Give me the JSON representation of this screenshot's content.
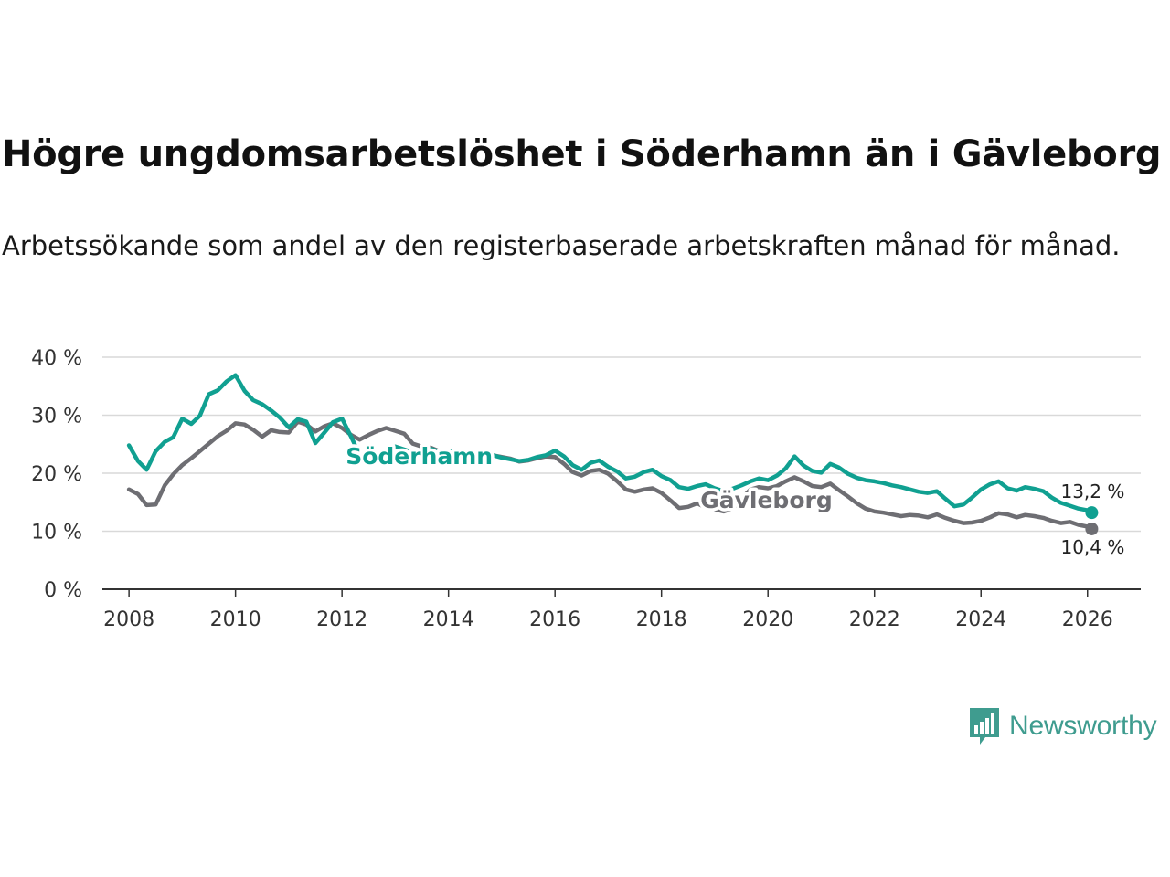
{
  "title": "Högre ungdomsarbetslöshet i Söderhamn än i Gävleborg",
  "subtitle": "Arbetssökande som andel av den registerbaserade arbetskraften månad för månad.",
  "brand": {
    "name": "Newsworthy",
    "logo_icon": "bar-chart-bubble-icon",
    "color": "#3f9c8f"
  },
  "chart_data": {
    "type": "line",
    "title": "Högre ungdomsarbetslöshet i Söderhamn än i Gävleborg",
    "xlabel": "",
    "ylabel": "",
    "xlim": [
      2007.5,
      2027
    ],
    "ylim": [
      0,
      40
    ],
    "grid": true,
    "legend": "inline labels",
    "x_ticks": [
      2008,
      2010,
      2012,
      2014,
      2016,
      2018,
      2020,
      2022,
      2024,
      2026
    ],
    "x_tick_labels": [
      "2008",
      "2010",
      "2012",
      "2014",
      "2016",
      "2018",
      "2020",
      "2022",
      "2024",
      "2026"
    ],
    "y_ticks": [
      0,
      10,
      20,
      30,
      40
    ],
    "y_tick_labels": [
      "0 %",
      "10 %",
      "20 %",
      "30 %",
      "40 %"
    ],
    "series": [
      {
        "name": "Gävleborg",
        "label": "Gävleborg",
        "color": "#6e6e73",
        "end_label": "10,4 %",
        "points": [
          [
            2008.0,
            17.2
          ],
          [
            2008.17,
            16.4
          ],
          [
            2008.33,
            14.5
          ],
          [
            2008.5,
            14.6
          ],
          [
            2008.67,
            17.9
          ],
          [
            2008.83,
            19.8
          ],
          [
            2009.0,
            21.4
          ],
          [
            2009.17,
            22.6
          ],
          [
            2009.33,
            23.8
          ],
          [
            2009.5,
            25.1
          ],
          [
            2009.67,
            26.4
          ],
          [
            2009.83,
            27.3
          ],
          [
            2010.0,
            28.6
          ],
          [
            2010.17,
            28.4
          ],
          [
            2010.33,
            27.5
          ],
          [
            2010.5,
            26.3
          ],
          [
            2010.67,
            27.4
          ],
          [
            2010.83,
            27.1
          ],
          [
            2011.0,
            27.0
          ],
          [
            2011.17,
            28.9
          ],
          [
            2011.33,
            28.4
          ],
          [
            2011.5,
            27.2
          ],
          [
            2011.67,
            28.1
          ],
          [
            2011.83,
            28.6
          ],
          [
            2012.0,
            27.8
          ],
          [
            2012.17,
            26.6
          ],
          [
            2012.33,
            25.8
          ],
          [
            2012.5,
            26.6
          ],
          [
            2012.67,
            27.3
          ],
          [
            2012.83,
            27.8
          ],
          [
            2013.0,
            27.3
          ],
          [
            2013.17,
            26.8
          ],
          [
            2013.33,
            25.1
          ],
          [
            2013.5,
            24.6
          ],
          [
            2013.67,
            24.4
          ],
          [
            2013.83,
            23.8
          ],
          [
            2014.0,
            23.5
          ],
          [
            2014.17,
            23.6
          ],
          [
            2014.33,
            23.3
          ],
          [
            2014.5,
            23.2
          ],
          [
            2014.67,
            22.9
          ],
          [
            2014.83,
            23.1
          ],
          [
            2015.0,
            22.8
          ],
          [
            2015.17,
            22.5
          ],
          [
            2015.33,
            22.0
          ],
          [
            2015.5,
            22.2
          ],
          [
            2015.67,
            22.6
          ],
          [
            2015.83,
            22.9
          ],
          [
            2016.0,
            22.8
          ],
          [
            2016.17,
            21.6
          ],
          [
            2016.33,
            20.2
          ],
          [
            2016.5,
            19.6
          ],
          [
            2016.67,
            20.4
          ],
          [
            2016.83,
            20.6
          ],
          [
            2017.0,
            19.9
          ],
          [
            2017.17,
            18.6
          ],
          [
            2017.33,
            17.2
          ],
          [
            2017.5,
            16.8
          ],
          [
            2017.67,
            17.2
          ],
          [
            2017.83,
            17.4
          ],
          [
            2018.0,
            16.6
          ],
          [
            2018.17,
            15.3
          ],
          [
            2018.33,
            14.0
          ],
          [
            2018.5,
            14.2
          ],
          [
            2018.67,
            14.8
          ],
          [
            2018.83,
            14.1
          ],
          [
            2019.0,
            13.8
          ],
          [
            2019.17,
            13.4
          ],
          [
            2019.33,
            13.9
          ],
          [
            2019.5,
            15.6
          ],
          [
            2019.67,
            17.2
          ],
          [
            2019.83,
            17.6
          ],
          [
            2020.0,
            17.4
          ],
          [
            2020.17,
            17.8
          ],
          [
            2020.33,
            18.6
          ],
          [
            2020.5,
            19.3
          ],
          [
            2020.67,
            18.6
          ],
          [
            2020.83,
            17.8
          ],
          [
            2021.0,
            17.6
          ],
          [
            2021.17,
            18.2
          ],
          [
            2021.33,
            17.1
          ],
          [
            2021.5,
            16.0
          ],
          [
            2021.67,
            14.8
          ],
          [
            2021.83,
            13.9
          ],
          [
            2022.0,
            13.4
          ],
          [
            2022.17,
            13.2
          ],
          [
            2022.33,
            12.9
          ],
          [
            2022.5,
            12.6
          ],
          [
            2022.67,
            12.8
          ],
          [
            2022.83,
            12.7
          ],
          [
            2023.0,
            12.4
          ],
          [
            2023.17,
            12.9
          ],
          [
            2023.33,
            12.3
          ],
          [
            2023.5,
            11.8
          ],
          [
            2023.67,
            11.4
          ],
          [
            2023.83,
            11.5
          ],
          [
            2024.0,
            11.8
          ],
          [
            2024.17,
            12.4
          ],
          [
            2024.33,
            13.1
          ],
          [
            2024.5,
            12.9
          ],
          [
            2024.67,
            12.4
          ],
          [
            2024.83,
            12.8
          ],
          [
            2025.0,
            12.6
          ],
          [
            2025.17,
            12.3
          ],
          [
            2025.33,
            11.8
          ],
          [
            2025.5,
            11.4
          ],
          [
            2025.67,
            11.6
          ],
          [
            2025.83,
            11.1
          ],
          [
            2026.0,
            10.8
          ],
          [
            2026.08,
            10.4
          ]
        ]
      },
      {
        "name": "Söderhamn",
        "label": "Söderhamn",
        "color": "#10a091",
        "end_label": "13,2 %",
        "points": [
          [
            2008.0,
            24.8
          ],
          [
            2008.17,
            22.1
          ],
          [
            2008.33,
            20.6
          ],
          [
            2008.5,
            23.8
          ],
          [
            2008.67,
            25.4
          ],
          [
            2008.83,
            26.2
          ],
          [
            2009.0,
            29.4
          ],
          [
            2009.17,
            28.5
          ],
          [
            2009.33,
            29.9
          ],
          [
            2009.5,
            33.6
          ],
          [
            2009.67,
            34.3
          ],
          [
            2009.83,
            35.8
          ],
          [
            2010.0,
            36.9
          ],
          [
            2010.17,
            34.2
          ],
          [
            2010.33,
            32.6
          ],
          [
            2010.5,
            31.9
          ],
          [
            2010.67,
            30.8
          ],
          [
            2010.83,
            29.6
          ],
          [
            2011.0,
            27.9
          ],
          [
            2011.17,
            29.3
          ],
          [
            2011.33,
            28.9
          ],
          [
            2011.5,
            25.2
          ],
          [
            2011.67,
            27.0
          ],
          [
            2011.83,
            28.8
          ],
          [
            2012.0,
            29.4
          ],
          [
            2012.17,
            26.3
          ],
          [
            2012.33,
            23.2
          ],
          [
            2012.5,
            21.6
          ],
          [
            2012.67,
            22.8
          ],
          [
            2012.83,
            23.9
          ],
          [
            2013.0,
            24.6
          ],
          [
            2013.17,
            24.1
          ],
          [
            2013.33,
            23.6
          ],
          [
            2013.5,
            23.8
          ],
          [
            2013.67,
            24.2
          ],
          [
            2013.83,
            23.7
          ],
          [
            2014.0,
            23.9
          ],
          [
            2014.17,
            23.6
          ],
          [
            2014.33,
            23.2
          ],
          [
            2014.5,
            22.9
          ],
          [
            2014.67,
            23.4
          ],
          [
            2014.83,
            23.1
          ],
          [
            2015.0,
            22.7
          ],
          [
            2015.17,
            22.4
          ],
          [
            2015.33,
            22.1
          ],
          [
            2015.5,
            22.3
          ],
          [
            2015.67,
            22.8
          ],
          [
            2015.83,
            23.1
          ],
          [
            2016.0,
            23.9
          ],
          [
            2016.17,
            22.9
          ],
          [
            2016.33,
            21.4
          ],
          [
            2016.5,
            20.6
          ],
          [
            2016.67,
            21.8
          ],
          [
            2016.83,
            22.2
          ],
          [
            2017.0,
            21.1
          ],
          [
            2017.17,
            20.3
          ],
          [
            2017.33,
            19.1
          ],
          [
            2017.5,
            19.4
          ],
          [
            2017.67,
            20.2
          ],
          [
            2017.83,
            20.6
          ],
          [
            2018.0,
            19.5
          ],
          [
            2018.17,
            18.8
          ],
          [
            2018.33,
            17.6
          ],
          [
            2018.5,
            17.3
          ],
          [
            2018.67,
            17.8
          ],
          [
            2018.83,
            18.1
          ],
          [
            2019.0,
            17.4
          ],
          [
            2019.17,
            16.9
          ],
          [
            2019.33,
            17.3
          ],
          [
            2019.5,
            17.9
          ],
          [
            2019.67,
            18.6
          ],
          [
            2019.83,
            19.1
          ],
          [
            2020.0,
            18.8
          ],
          [
            2020.17,
            19.6
          ],
          [
            2020.33,
            20.8
          ],
          [
            2020.5,
            22.9
          ],
          [
            2020.67,
            21.3
          ],
          [
            2020.83,
            20.4
          ],
          [
            2021.0,
            20.1
          ],
          [
            2021.17,
            21.6
          ],
          [
            2021.33,
            21.0
          ],
          [
            2021.5,
            19.9
          ],
          [
            2021.67,
            19.2
          ],
          [
            2021.83,
            18.8
          ],
          [
            2022.0,
            18.6
          ],
          [
            2022.17,
            18.3
          ],
          [
            2022.33,
            17.9
          ],
          [
            2022.5,
            17.6
          ],
          [
            2022.67,
            17.2
          ],
          [
            2022.83,
            16.8
          ],
          [
            2023.0,
            16.6
          ],
          [
            2023.17,
            16.9
          ],
          [
            2023.33,
            15.6
          ],
          [
            2023.5,
            14.3
          ],
          [
            2023.67,
            14.6
          ],
          [
            2023.83,
            15.8
          ],
          [
            2024.0,
            17.2
          ],
          [
            2024.17,
            18.1
          ],
          [
            2024.33,
            18.6
          ],
          [
            2024.5,
            17.4
          ],
          [
            2024.67,
            17.0
          ],
          [
            2024.83,
            17.6
          ],
          [
            2025.0,
            17.3
          ],
          [
            2025.17,
            16.9
          ],
          [
            2025.33,
            15.8
          ],
          [
            2025.5,
            14.9
          ],
          [
            2025.67,
            14.4
          ],
          [
            2025.83,
            13.9
          ],
          [
            2026.0,
            13.6
          ],
          [
            2026.08,
            13.2
          ]
        ]
      }
    ]
  }
}
